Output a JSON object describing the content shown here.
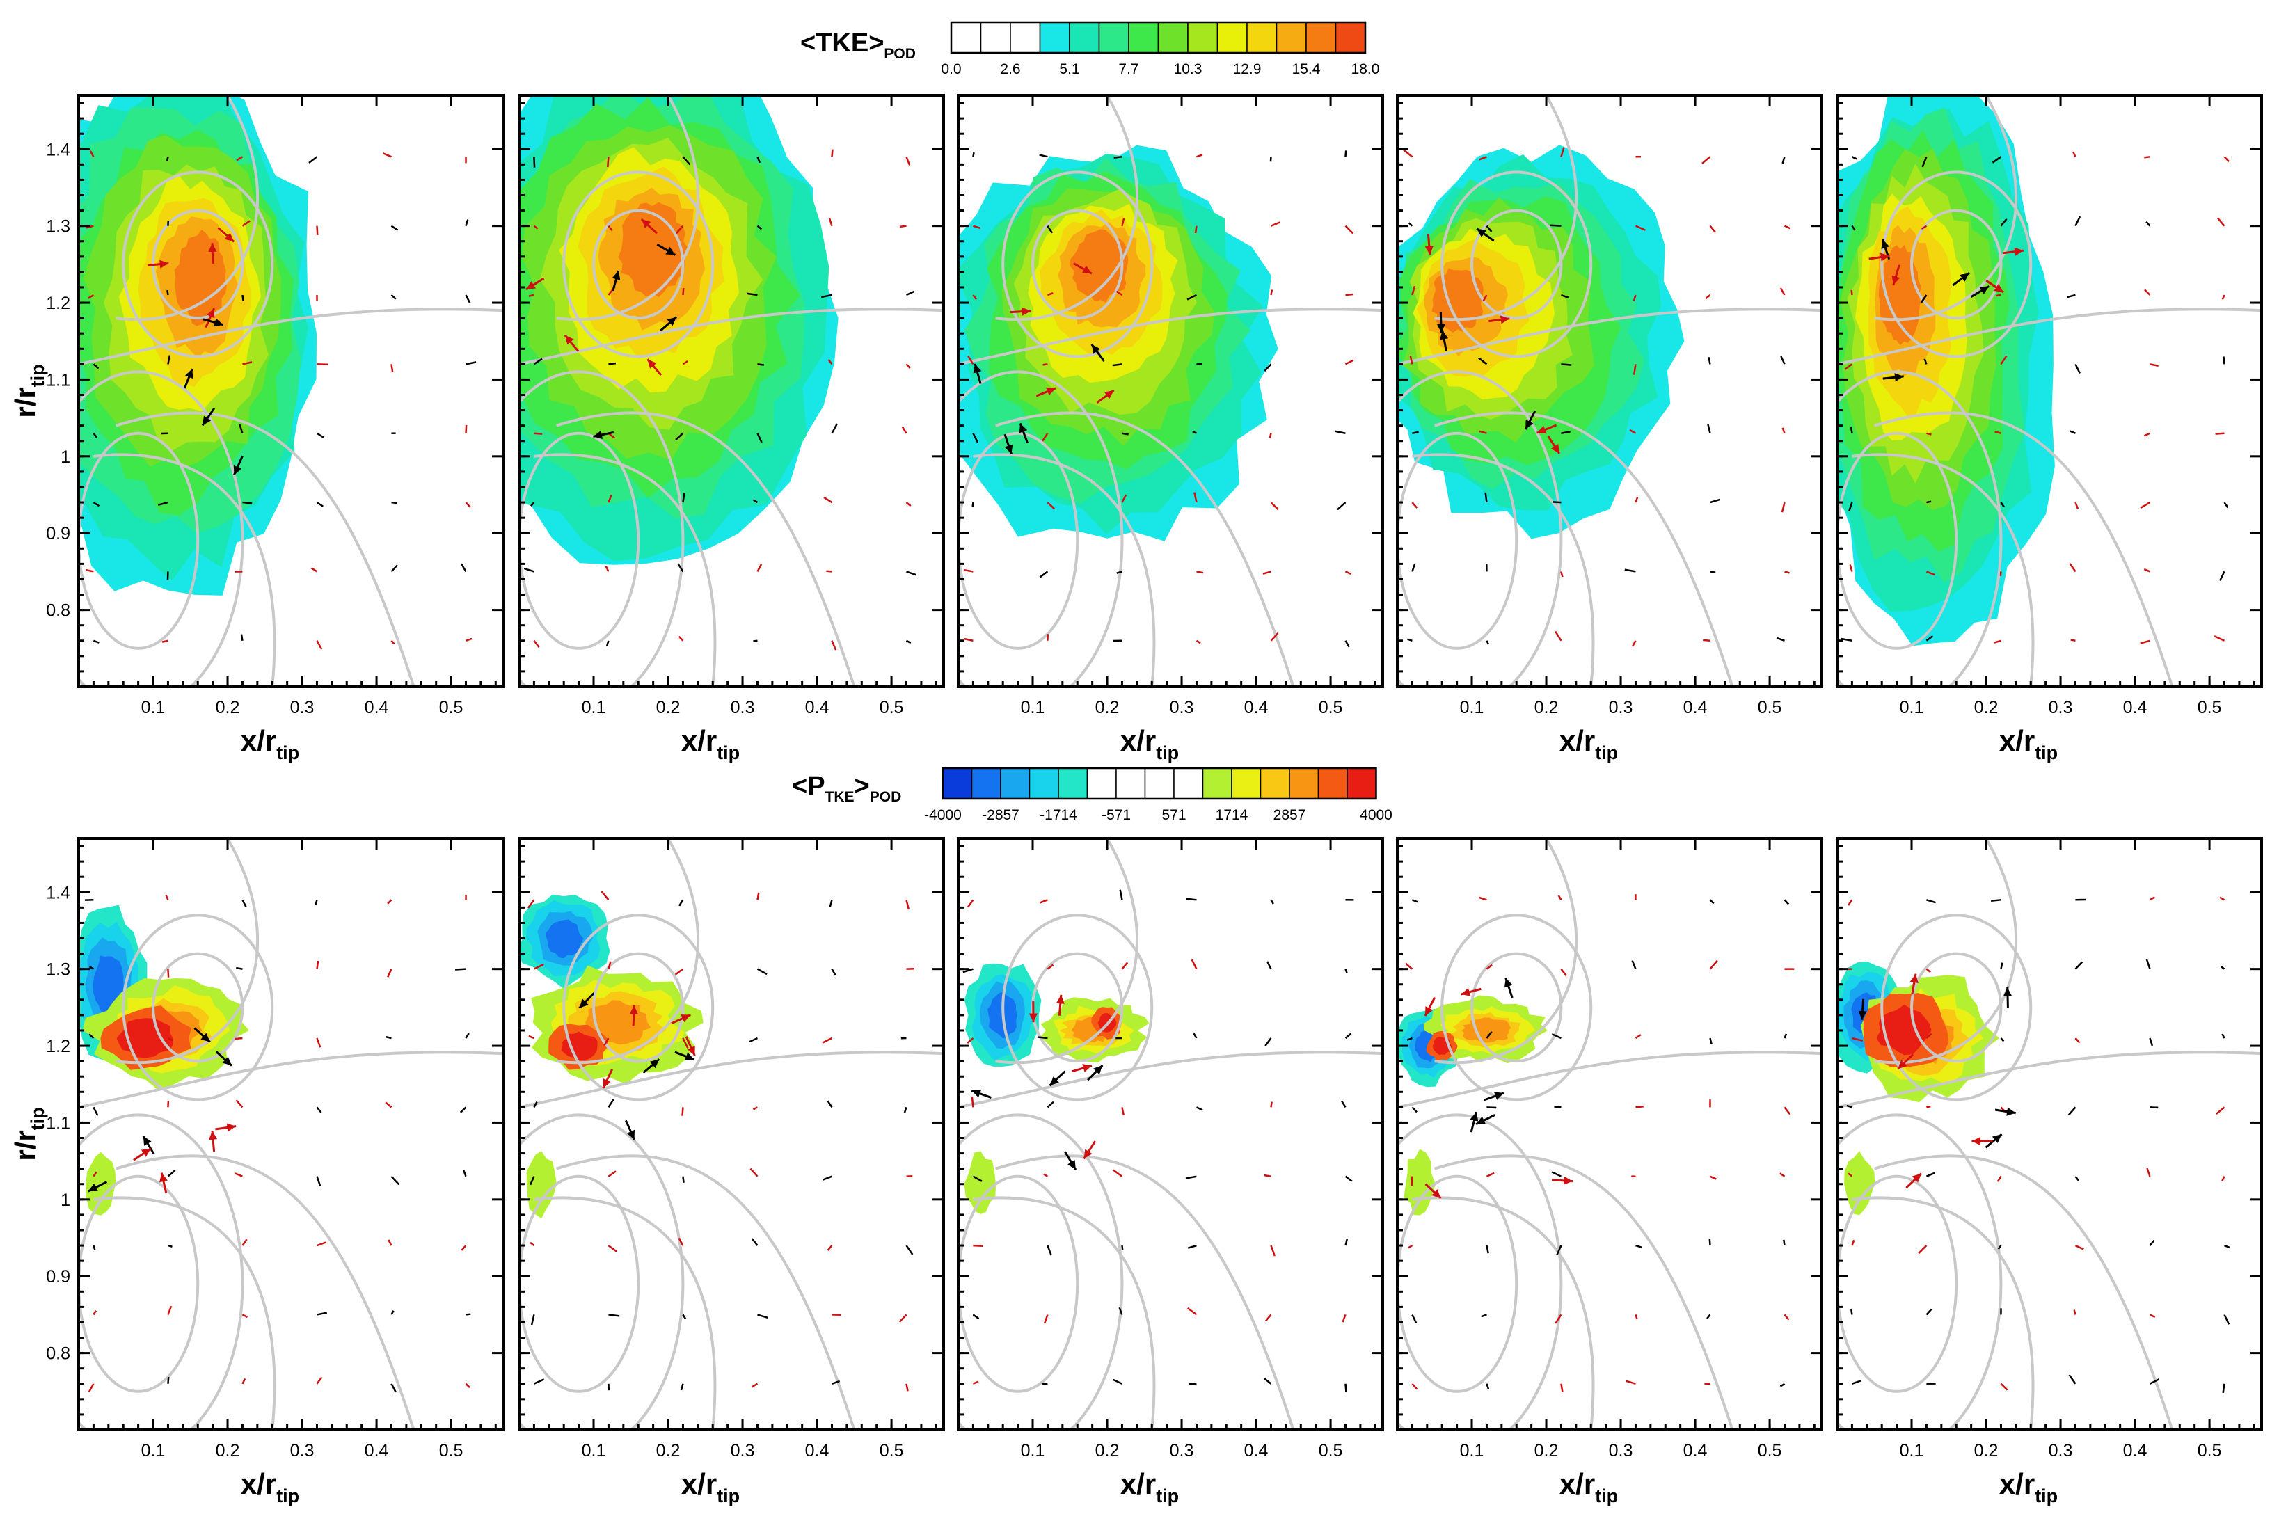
{
  "chart_data": [
    {
      "type": "heatmap",
      "row": "TKE",
      "colorbar": {
        "title_main": "<TKE>",
        "title_sub": "POD",
        "levels": [
          0.0,
          1.3,
          2.6,
          3.9,
          5.1,
          6.4,
          7.7,
          9.0,
          10.3,
          11.6,
          12.9,
          14.2,
          15.4,
          16.7,
          18.0
        ],
        "tick_labels": [
          "0.0",
          "2.6",
          "5.1",
          "7.7",
          "10.3",
          "12.9",
          "15.4",
          "18.0"
        ],
        "colors": [
          "#ffffff",
          "#ffffff",
          "#ffffff",
          "#19e6e6",
          "#19e6b4",
          "#2de888",
          "#3ee74a",
          "#6ee22a",
          "#a6e61e",
          "#e8f00a",
          "#f4d60f",
          "#f7ab12",
          "#f47c12",
          "#f04a14"
        ]
      },
      "panels": 5,
      "xlabel_main": "x/r",
      "xlabel_sub": "tip",
      "ylabel_main": "r/r",
      "ylabel_sub": "tip",
      "xlim": [
        0,
        0.57
      ],
      "ylim": [
        0.7,
        1.47
      ],
      "x_ticks": [
        "0.1",
        "0.2",
        "0.3",
        "0.4",
        "0.5"
      ],
      "y_ticks": [
        "0.8",
        "0.9",
        "1",
        "1.1",
        "1.2",
        "1.3",
        "1.4"
      ]
    },
    {
      "type": "heatmap",
      "row": "P_TKE",
      "colorbar": {
        "title_main": "<P",
        "title_mid": "TKE",
        "title_end": ">",
        "title_sub": "POD",
        "levels": [
          -4000,
          -3429,
          -2857,
          -2286,
          -1714,
          -1143,
          -571,
          0,
          571,
          1143,
          1714,
          2286,
          2857,
          3429,
          4000
        ],
        "tick_labels": [
          "-4000",
          "-2857",
          "-1714",
          "-571",
          "571",
          "1714",
          "2857",
          "4000"
        ],
        "colors": [
          "#0a3cdc",
          "#1473f0",
          "#19a8f0",
          "#19d2eb",
          "#23e6c8",
          "#ffffff",
          "#ffffff",
          "#ffffff",
          "#ffffff",
          "#b4f032",
          "#eaf014",
          "#f8c814",
          "#f89614",
          "#f45a14",
          "#e81e14"
        ]
      },
      "panels": 5,
      "xlabel_main": "x/r",
      "xlabel_sub": "tip",
      "ylabel_main": "r/r",
      "ylabel_sub": "tip",
      "xlim": [
        0,
        0.57
      ],
      "ylim": [
        0.7,
        1.47
      ],
      "x_ticks": [
        "0.1",
        "0.2",
        "0.3",
        "0.4",
        "0.5"
      ],
      "y_ticks": [
        "0.8",
        "0.9",
        "1",
        "1.1",
        "1.2",
        "1.3",
        "1.4"
      ]
    }
  ]
}
